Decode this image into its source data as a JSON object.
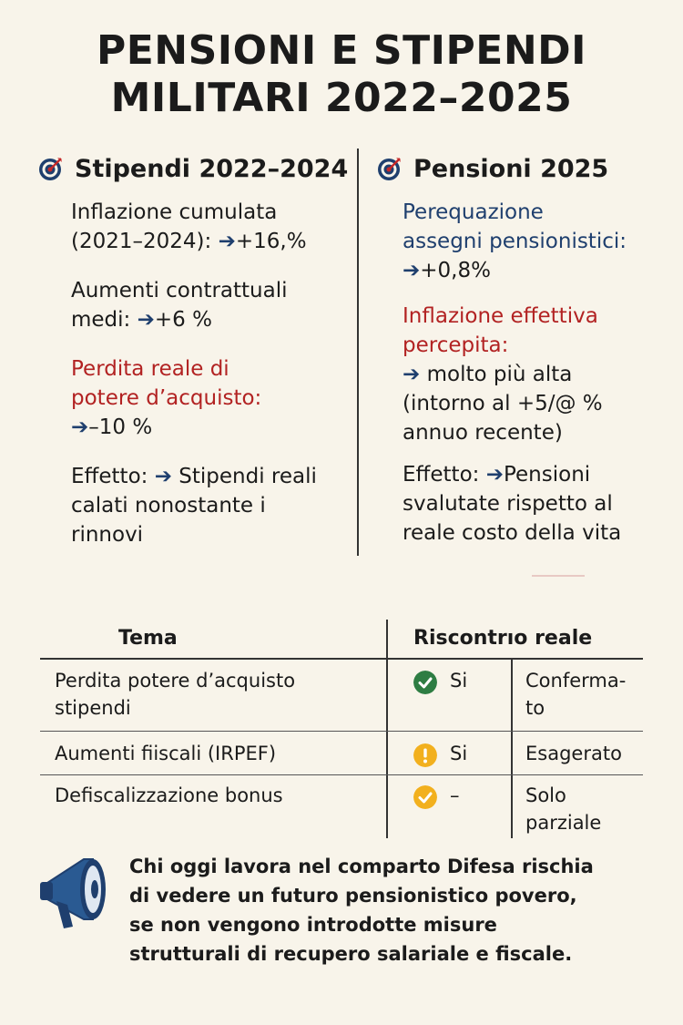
{
  "title": {
    "line1": "PENSIONI E STIPENDI",
    "line2": "MILITARI 2022–2025"
  },
  "left": {
    "heading": "Stipendi 2022–2024",
    "icon": "target-icon",
    "inflation_l1": "Inflazione cumulata",
    "inflation_l2": "(2021–2024):",
    "inflation_val": "+16,%",
    "raises_l1": "Aumenti contrattuali",
    "raises_l2": "medi:",
    "raises_val": "+6 %",
    "loss_l1": "Perdita reale di",
    "loss_l2": "potere d’acquisto:",
    "loss_val": "–10 %",
    "effect_label": "Effetto:",
    "effect_l1": "Stipendi reali",
    "effect_l2": "calati nonostante i",
    "effect_l3": "rinnovi"
  },
  "right": {
    "heading": "Pensioni 2025",
    "icon": "target-icon",
    "perequazione_l1": "Perequazione",
    "perequazione_l2": "assegni pensionistici:",
    "perequazione_val": "+0,8%",
    "infl_l1": "Inflazione effettiva",
    "infl_l2": "percepita:",
    "infl_l3": "molto più alta",
    "infl_l4": "(intorno al +5/@ %",
    "infl_l5": "annuo recente)",
    "effect_label": "Effetto:",
    "effect_l1": "Pensioni",
    "effect_l2": "svalutate rispetto al",
    "effect_l3": "reale costo della vita"
  },
  "arrow": "➔",
  "table": {
    "col1": "Tema",
    "col2": "Riscontrıo reale",
    "rows": [
      {
        "tema_l1": "Perdita potere d’acquisto",
        "tema_l2": "stipendi",
        "icon": "check-circle-icon",
        "color": "#2e7d43",
        "answer": "Si",
        "note_l1": "Conferma-",
        "note_l2": "to"
      },
      {
        "tema_l1": "Aumenti fiiscali (IRPEF)",
        "tema_l2": "",
        "icon": "warning-circle-icon",
        "color": "#f2b01e",
        "answer": "Si",
        "note_l1": "Esagerato",
        "note_l2": ""
      },
      {
        "tema_l1": "Defiscalizzazione bonus",
        "tema_l2": "",
        "icon": "check-circle-icon",
        "color": "#f2b01e",
        "answer": "–",
        "note_l1": "Solo",
        "note_l2": "parziale"
      }
    ]
  },
  "footer": {
    "icon": "megaphone-icon",
    "line1": "Chi oggi lavora nel comparto Difesa rischia",
    "line2": "di vedere un futuro pensionistico povero,",
    "line3": "se non vengono introdotte misure",
    "line4": "strutturali di recupero salariale e fiscale."
  }
}
